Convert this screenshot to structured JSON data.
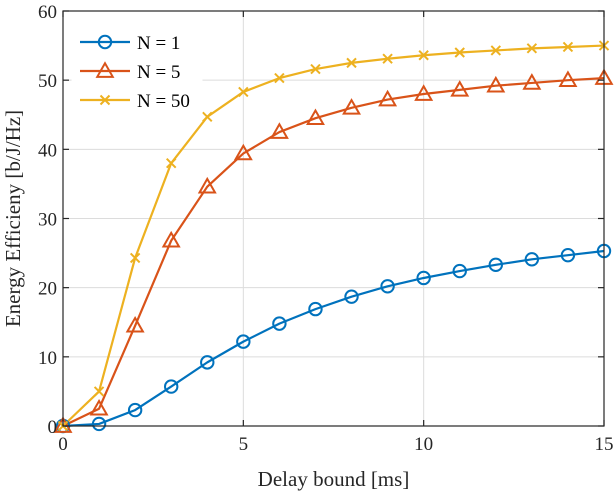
{
  "chart_data": {
    "type": "line",
    "title": "",
    "xlabel": "Delay bound [ms]",
    "ylabel": "Energy Efficieny [b/J/Hz]",
    "xlim": [
      0,
      15
    ],
    "ylim": [
      0,
      60
    ],
    "xticks": [
      0,
      5,
      10,
      15
    ],
    "yticks": [
      0,
      10,
      20,
      30,
      40,
      50,
      60
    ],
    "grid": true,
    "legend_position": "top-left",
    "x": [
      0,
      1,
      2,
      3,
      4,
      5,
      6,
      7,
      8,
      9,
      10,
      11,
      12,
      13,
      14,
      15
    ],
    "series": [
      {
        "name": "N = 1",
        "marker": "circle",
        "color": "#0072BD",
        "values": [
          0,
          0.3,
          2.3,
          5.7,
          9.2,
          12.2,
          14.8,
          16.9,
          18.7,
          20.2,
          21.4,
          22.4,
          23.3,
          24.1,
          24.7,
          25.3
        ]
      },
      {
        "name": "N = 5",
        "marker": "triangle",
        "color": "#D95319",
        "values": [
          0,
          2.5,
          14.5,
          26.8,
          34.6,
          39.4,
          42.5,
          44.5,
          46.0,
          47.2,
          48.0,
          48.6,
          49.2,
          49.6,
          50.0,
          50.3
        ]
      },
      {
        "name": "N = 50",
        "marker": "x",
        "color": "#EDB120",
        "values": [
          0,
          5.0,
          24.3,
          38.0,
          44.7,
          48.3,
          50.3,
          51.6,
          52.5,
          53.1,
          53.6,
          54.0,
          54.3,
          54.6,
          54.8,
          55.0
        ]
      }
    ]
  }
}
